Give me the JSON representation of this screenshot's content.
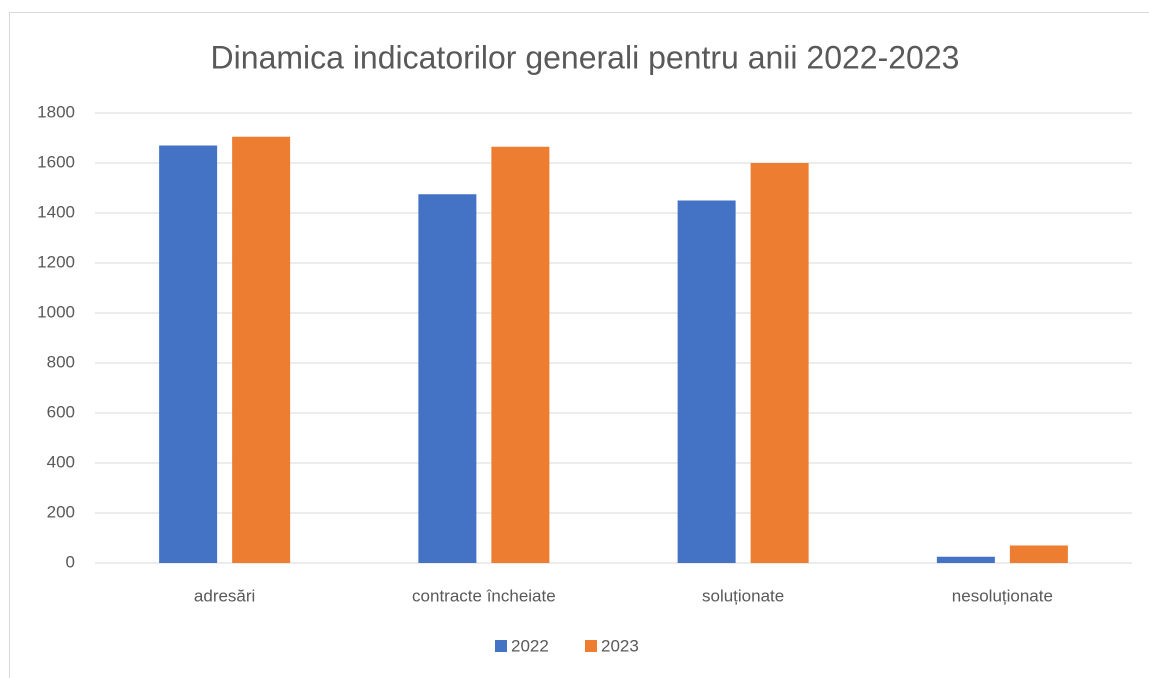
{
  "chart_data": {
    "type": "bar",
    "title": "Dinamica indicatorilor generali pentru anii 2022-2023",
    "categories": [
      "adresări",
      "contracte încheiate",
      "soluționate",
      "nesoluționate"
    ],
    "series": [
      {
        "name": "2022",
        "color": "#4472c4",
        "values": [
          1670,
          1475,
          1450,
          25
        ]
      },
      {
        "name": "2023",
        "color": "#ed7d31",
        "values": [
          1705,
          1665,
          1600,
          70
        ]
      }
    ],
    "ylim": [
      0,
      1800
    ],
    "yticks": [
      0,
      200,
      400,
      600,
      800,
      1000,
      1200,
      1400,
      1600,
      1800
    ],
    "grid": true,
    "legend": "bottom"
  }
}
